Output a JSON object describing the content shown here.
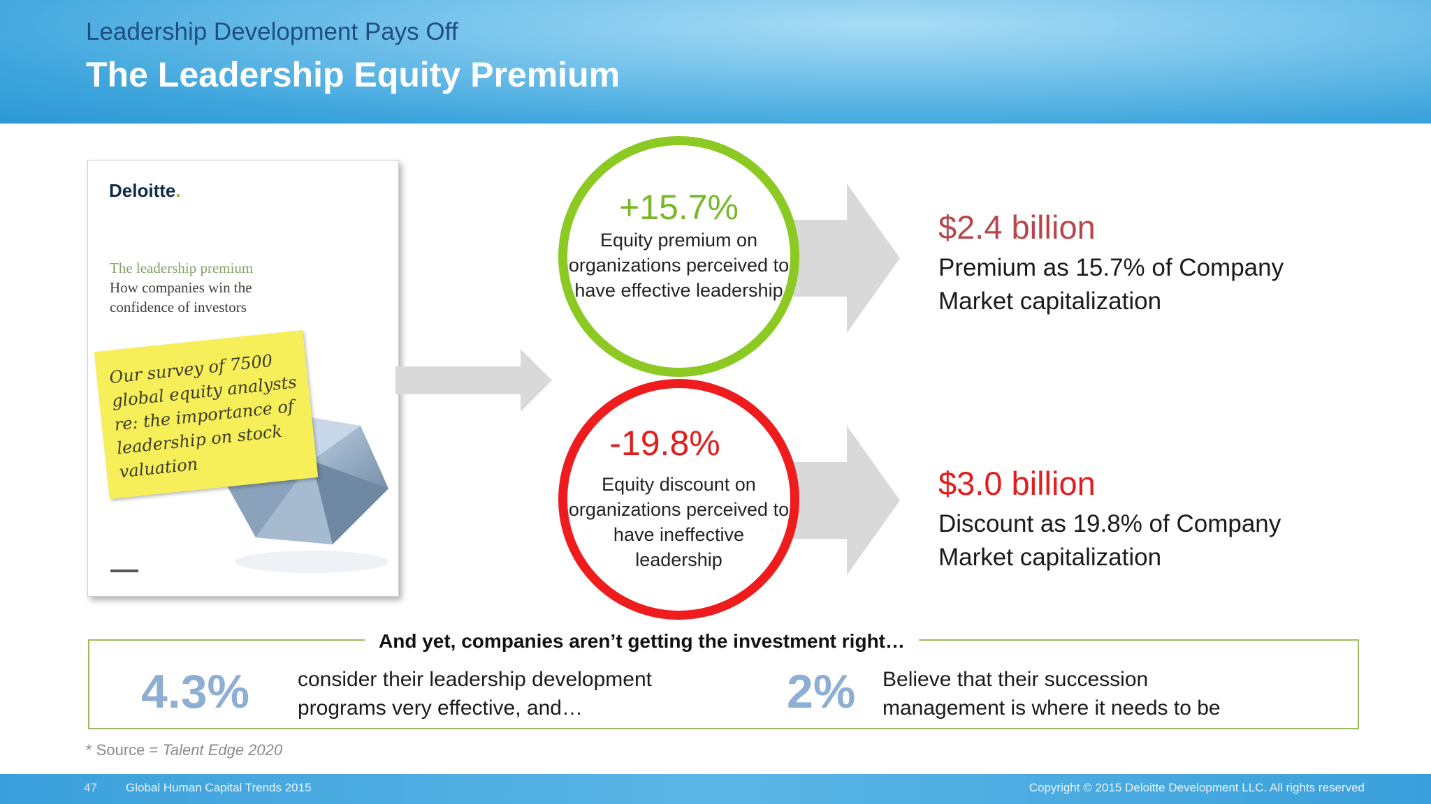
{
  "header": {
    "kicker": "Leadership Development Pays Off",
    "title": "The Leadership Equity Premium"
  },
  "report_cover": {
    "brand": "Deloitte",
    "title_line1": "The leadership premium",
    "title_line2": "How companies win the",
    "title_line3": "confidence of investors",
    "sticky_note": "Our survey of 7500 global equity analysts re: the importance of leadership on stock valuation"
  },
  "premium": {
    "value": "+15.7%",
    "description": "Equity premium on organizations perceived to have effective leadership",
    "result_value": "$2.4 billion",
    "result_line1": "Premium as 15.7% of Company",
    "result_line2": "Market capitalization"
  },
  "discount": {
    "value": "-19.8%",
    "description": "Equity discount on organizations perceived to have ineffective leadership",
    "result_value": "$3.0 billion",
    "result_line1": "Discount as 19.8% of Company",
    "result_line2": "Market capitalization"
  },
  "investment": {
    "heading": "And yet, companies aren’t getting the investment right…",
    "stat1_value": "4.3%",
    "stat1_line1": "consider  their leadership development",
    "stat1_line2": "programs very effective, and…",
    "stat2_value": "2%",
    "stat2_line1": "Believe that their succession",
    "stat2_line2": "management is where it needs to be"
  },
  "source": {
    "prefix": "* Source = ",
    "name": "Talent Edge 2020"
  },
  "footer": {
    "page": "47",
    "title": "Global Human Capital Trends 2015",
    "copyright": "Copyright © 2015 Deloitte Development LLC. All rights reserved"
  },
  "colors": {
    "premium_ring": "#8cc923",
    "discount_ring": "#ee1c1c",
    "stat": "#8faed3",
    "arrow": "#d9d9d9"
  }
}
